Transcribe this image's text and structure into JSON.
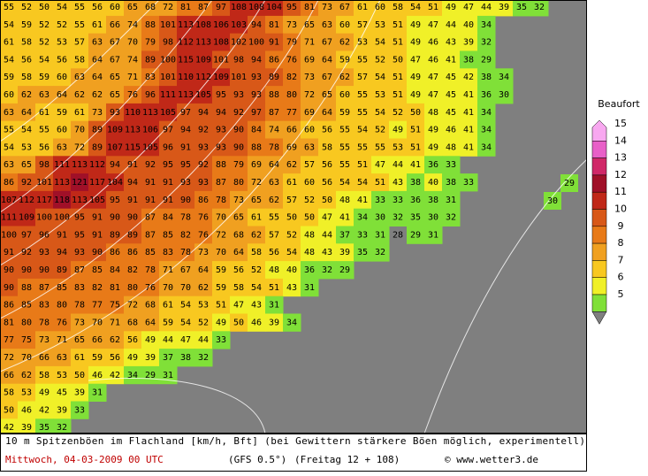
{
  "map": {
    "rows": [
      [
        55,
        52,
        50,
        54,
        55,
        56,
        60,
        65,
        68,
        72,
        81,
        87,
        97,
        108,
        108,
        104,
        95,
        81,
        73,
        67,
        61,
        60,
        58,
        54,
        51,
        49,
        47,
        44,
        39,
        35,
        32
      ],
      [
        54,
        59,
        52,
        52,
        55,
        61,
        66,
        74,
        88,
        101,
        113,
        108,
        106,
        103,
        94,
        81,
        73,
        65,
        63,
        60,
        57,
        53,
        51,
        49,
        47,
        44,
        40,
        34
      ],
      [
        61,
        58,
        52,
        53,
        57,
        63,
        67,
        70,
        79,
        98,
        112,
        113,
        108,
        102,
        100,
        91,
        79,
        71,
        67,
        62,
        53,
        54,
        51,
        49,
        46,
        43,
        39,
        32
      ],
      [
        54,
        56,
        54,
        56,
        58,
        64,
        67,
        74,
        89,
        100,
        115,
        109,
        101,
        98,
        94,
        86,
        76,
        69,
        64,
        59,
        55,
        52,
        50,
        47,
        46,
        41,
        38,
        29
      ],
      [
        59,
        58,
        59,
        60,
        63,
        64,
        65,
        71,
        83,
        101,
        110,
        112,
        109,
        101,
        93,
        89,
        82,
        73,
        67,
        62,
        57,
        54,
        51,
        49,
        47,
        45,
        42,
        38,
        34
      ],
      [
        60,
        62,
        63,
        64,
        62,
        62,
        65,
        76,
        96,
        111,
        113,
        105,
        95,
        93,
        93,
        88,
        80,
        72,
        65,
        60,
        55,
        53,
        51,
        49,
        47,
        45,
        41,
        36,
        30
      ],
      [
        63,
        64,
        61,
        59,
        61,
        73,
        93,
        110,
        113,
        105,
        97,
        94,
        94,
        92,
        97,
        87,
        77,
        69,
        64,
        59,
        55,
        54,
        52,
        50,
        48,
        45,
        41,
        34
      ],
      [
        55,
        54,
        55,
        60,
        70,
        89,
        109,
        113,
        106,
        97,
        94,
        92,
        93,
        90,
        84,
        74,
        66,
        60,
        56,
        55,
        54,
        52,
        49,
        51,
        49,
        46,
        41,
        34
      ],
      [
        54,
        53,
        56,
        63,
        72,
        89,
        107,
        115,
        105,
        96,
        91,
        93,
        93,
        90,
        88,
        78,
        69,
        63,
        58,
        55,
        55,
        55,
        53,
        51,
        49,
        48,
        41,
        34
      ],
      [
        63,
        65,
        98,
        111,
        113,
        112,
        94,
        91,
        92,
        95,
        95,
        92,
        88,
        79,
        69,
        64,
        62,
        57,
        56,
        55,
        51,
        47,
        44,
        41,
        36,
        33
      ],
      [
        86,
        92,
        101,
        113,
        121,
        117,
        104,
        94,
        91,
        91,
        93,
        93,
        87,
        80,
        72,
        63,
        61,
        60,
        56,
        54,
        54,
        51,
        43,
        38,
        40,
        38,
        33
      ],
      [
        107,
        112,
        117,
        118,
        113,
        105,
        95,
        91,
        91,
        91,
        90,
        86,
        78,
        73,
        65,
        62,
        57,
        52,
        50,
        48,
        41,
        33,
        33,
        36,
        38,
        31
      ],
      [
        111,
        109,
        100,
        100,
        95,
        91,
        90,
        90,
        87,
        84,
        78,
        76,
        70,
        65,
        61,
        55,
        50,
        50,
        47,
        41,
        34,
        30,
        32,
        35,
        30,
        32
      ],
      [
        100,
        97,
        96,
        91,
        95,
        91,
        89,
        89,
        87,
        85,
        82,
        76,
        72,
        68,
        62,
        57,
        52,
        48,
        44,
        37,
        33,
        31,
        28,
        29,
        31
      ],
      [
        91,
        92,
        93,
        94,
        93,
        90,
        86,
        86,
        85,
        83,
        78,
        73,
        70,
        64,
        58,
        56,
        54,
        48,
        43,
        39,
        35,
        32
      ],
      [
        90,
        90,
        90,
        89,
        87,
        85,
        84,
        82,
        78,
        71,
        67,
        64,
        59,
        56,
        52,
        48,
        40,
        36,
        32,
        29
      ],
      [
        90,
        88,
        87,
        85,
        83,
        82,
        81,
        80,
        76,
        70,
        70,
        62,
        59,
        58,
        54,
        51,
        43,
        31
      ],
      [
        86,
        85,
        83,
        80,
        78,
        77,
        75,
        72,
        68,
        61,
        54,
        53,
        51,
        47,
        43,
        31
      ],
      [
        81,
        80,
        78,
        76,
        73,
        70,
        71,
        68,
        64,
        59,
        54,
        52,
        49,
        50,
        46,
        39,
        34
      ],
      [
        77,
        75,
        73,
        71,
        65,
        66,
        62,
        56,
        49,
        44,
        47,
        44,
        33
      ],
      [
        72,
        70,
        66,
        63,
        61,
        59,
        56,
        49,
        39,
        37,
        38,
        32
      ],
      [
        66,
        62,
        58,
        53,
        50,
        46,
        42,
        34,
        29,
        31
      ],
      [
        58,
        53,
        49,
        45,
        39,
        31
      ],
      [
        50,
        46,
        42,
        39,
        33
      ],
      [
        42,
        39,
        35,
        32
      ]
    ],
    "isolated_values": [
      29,
      30
    ]
  },
  "legend": {
    "title": "Beaufort",
    "items": [
      {
        "value": 15,
        "color": "#f8a8f0"
      },
      {
        "value": 14,
        "color": "#e860c8"
      },
      {
        "value": 13,
        "color": "#d02868"
      },
      {
        "value": 12,
        "color": "#a01028"
      },
      {
        "value": 11,
        "color": "#c02818"
      },
      {
        "value": 10,
        "color": "#d85818"
      },
      {
        "value": 9,
        "color": "#e87a18"
      },
      {
        "value": 8,
        "color": "#f0a020"
      },
      {
        "value": 7,
        "color": "#f8c820"
      },
      {
        "value": 6,
        "color": "#f0f028"
      },
      {
        "value": 5,
        "color": "#80e038"
      }
    ]
  },
  "footer": {
    "caption": "10 m Spitzenböen im Flachland [km/h, Bft] (bei Gewittern stärkere Böen möglich, experimentell)",
    "date": "Mittwoch, 04-03-2009  00 UTC",
    "model": "(GFS 0.5°)",
    "run": "(Freitag 12 + 108)",
    "credit": "© www.wetter3.de"
  }
}
